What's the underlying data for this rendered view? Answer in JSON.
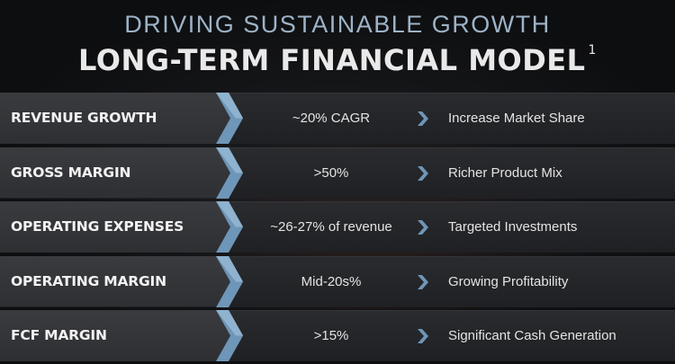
{
  "header": {
    "subtitle": "DRIVING SUSTAINABLE GROWTH",
    "title": "LONG-TERM FINANCIAL MODEL",
    "footnote": "1"
  },
  "rows": [
    {
      "label": "REVENUE GROWTH",
      "value": "~20% CAGR",
      "description": "Increase Market Share"
    },
    {
      "label": "GROSS MARGIN",
      "value": ">50%",
      "description": "Richer Product Mix"
    },
    {
      "label": "OPERATING EXPENSES",
      "value": "~26-27% of revenue",
      "description": "Targeted Investments"
    },
    {
      "label": "OPERATING MARGIN",
      "value": "Mid-20s%",
      "description": "Growing Profitability"
    },
    {
      "label": "FCF MARGIN",
      "value": ">15%",
      "description": "Significant Cash Generation"
    }
  ],
  "colors": {
    "accent_blue": "#6e96b8",
    "subtitle": "#9db3c7"
  },
  "icons": {
    "row_arrow": "chevron-right-icon",
    "value_arrow": "chevron-right-icon"
  }
}
